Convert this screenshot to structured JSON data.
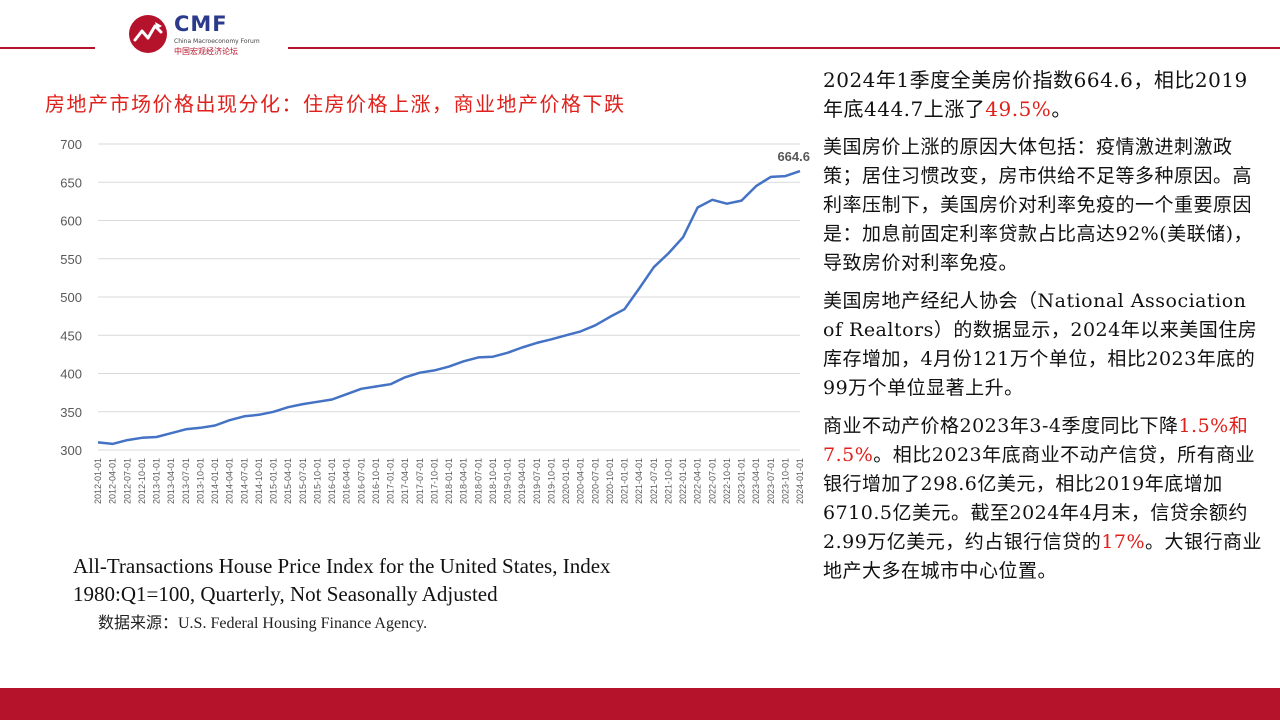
{
  "logo": {
    "text": "CMF",
    "subtitle_en": "China Macroeconomy Forum",
    "subtitle_cn": "中国宏观经济论坛",
    "brand_red": "#b5122b",
    "brand_blue": "#2b3a8c"
  },
  "slide_title": "房地产市场价格出现分化：住房价格上涨，商业地产价格下跌",
  "caption": "All-Transactions House Price Index for the United States, Index 1980:Q1=100, Quarterly, Not Seasonally Adjusted",
  "source": "数据来源：U.S. Federal Housing Finance Agency.",
  "right_panel": {
    "p1": {
      "a": "2024年1季度全美房价指数664.6，相比2019年底444.7上涨了",
      "b": "49.5%",
      "c": "。"
    },
    "p2": "美国房价上涨的原因大体包括：疫情激进刺激政策；居住习惯改变，房市供给不足等多种原因。高利率压制下，美国房价对利率免疫的一个重要原因是：加息前固定利率贷款占比高达92%(美联储)，导致房价对利率免疫。",
    "p3": "美国房地产经纪人协会（National Association of Realtors）的数据显示，2024年以来美国住房库存增加，4月份121万个单位，相比2023年底的99万个单位显著上升。",
    "p4": {
      "a": "商业不动产价格2023年3-4季度同比下降",
      "b": "1.5%和7.5%",
      "c": "。相比2023年底商业不动产信贷，所有商业银行增加了298.6亿美元，相比2019年底增加6710.5亿美元。截至2024年4月末，信贷余额约2.99万亿美元，约占银行信贷的",
      "d": "17%",
      "e": "。大银行商业地产大多在城市中心位置。"
    },
    "highlight_color": "#e0201b"
  },
  "chart_data": {
    "type": "line",
    "title": "",
    "xlabel": "",
    "ylabel": "",
    "ylim": [
      300,
      700
    ],
    "yticks": [
      300,
      350,
      400,
      450,
      500,
      550,
      600,
      650,
      700
    ],
    "grid": true,
    "line_color": "#4472c4",
    "annotation": "664.6",
    "x": [
      "2012-01-01",
      "2012-04-01",
      "2012-07-01",
      "2012-10-01",
      "2013-01-01",
      "2013-04-01",
      "2013-07-01",
      "2013-10-01",
      "2014-01-01",
      "2014-04-01",
      "2014-07-01",
      "2014-10-01",
      "2015-01-01",
      "2015-04-01",
      "2015-07-01",
      "2015-10-01",
      "2016-01-01",
      "2016-04-01",
      "2016-07-01",
      "2016-10-01",
      "2017-01-01",
      "2017-04-01",
      "2017-07-01",
      "2017-10-01",
      "2018-01-01",
      "2018-04-01",
      "2018-07-01",
      "2018-10-01",
      "2019-01-01",
      "2019-04-01",
      "2019-07-01",
      "2019-10-01",
      "2020-01-01",
      "2020-04-01",
      "2020-07-01",
      "2020-10-01",
      "2021-01-01",
      "2021-04-01",
      "2021-07-01",
      "2021-10-01",
      "2022-01-01",
      "2022-04-01",
      "2022-07-01",
      "2022-10-01",
      "2023-01-01",
      "2023-04-01",
      "2023-07-01",
      "2023-10-01",
      "2024-01-01"
    ],
    "series": [
      {
        "name": "",
        "values": [
          310,
          308,
          313,
          316,
          317,
          322,
          327,
          329,
          332,
          339,
          344,
          346,
          350,
          356,
          360,
          363,
          366,
          373,
          380,
          383,
          386,
          395,
          401,
          404,
          409,
          416,
          421,
          422,
          427,
          434,
          440,
          444.7,
          450,
          455,
          463,
          474,
          484,
          511,
          539,
          557,
          578,
          617,
          627,
          622,
          626,
          645,
          657,
          658,
          664.6
        ]
      }
    ]
  }
}
